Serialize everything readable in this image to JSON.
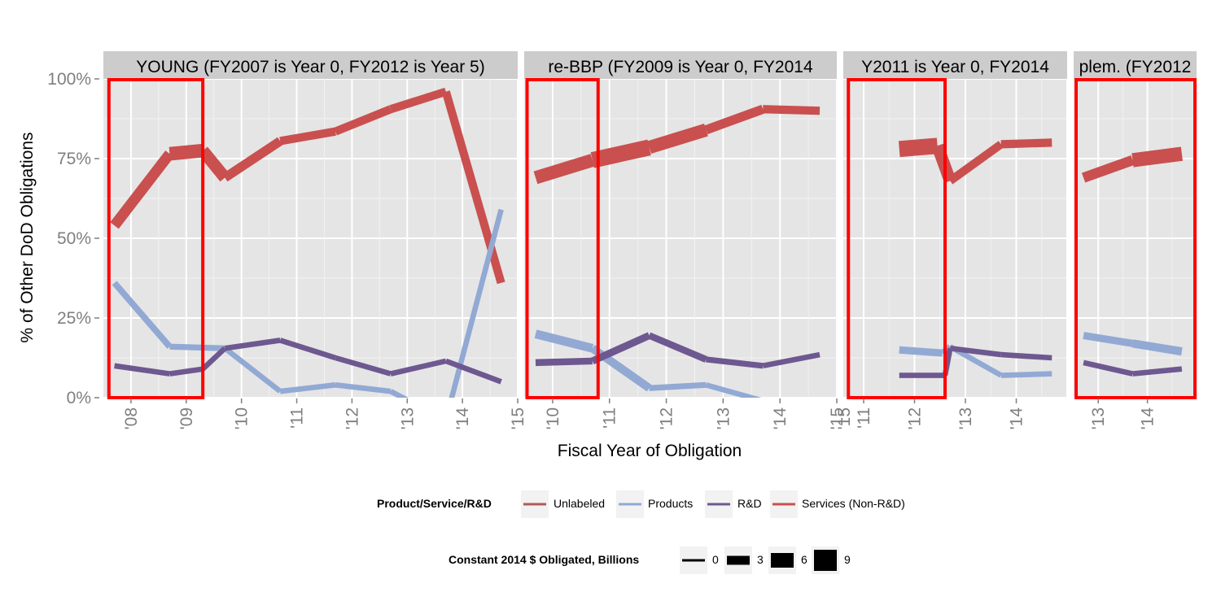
{
  "chart_data": {
    "type": "line",
    "ylabel": "% of  Other DoD  Obligations",
    "xlabel": "Fiscal Year of Obligation",
    "ylim": [
      0,
      1
    ],
    "yticks": [
      "0%",
      "25%",
      "50%",
      "75%",
      "100%"
    ],
    "grid": true,
    "legend_position": "bottom",
    "colors": {
      "Unlabeled": "#B2585A",
      "Products": "#92A9D4",
      "R&D": "#6E5890",
      "Services (Non-R&D)": "#C9504F",
      "panel_bg": "#E5E5E5",
      "strip_bg": "#CCCCCC",
      "highlight": "#FF0000"
    },
    "legend_color": {
      "title": "Product/Service/R&D",
      "items": [
        "Unlabeled",
        "Products",
        "R&D",
        "Services (Non-R&D)"
      ]
    },
    "legend_size": {
      "title": "Constant 2014 $ Obligated, Billions",
      "items": [
        "0",
        "3",
        "6",
        "9"
      ]
    },
    "panels": [
      {
        "strip": "YOUNG (FY2007 is Year 0, FY2012 is Year 5)",
        "xlim": [
          2007.5,
          2015
        ],
        "x_ticks": [
          2008,
          2009,
          2010,
          2011,
          2012,
          2013,
          2014,
          2015
        ],
        "x_tick_labels": [
          "'08",
          "'09",
          "'10",
          "'11",
          "'12",
          "'13",
          "'14",
          "'15"
        ],
        "highlight": [
          2007.6,
          2009.3
        ],
        "series": [
          {
            "name": "Services (Non-R&D)",
            "x": [
              2007.7,
              2008.7,
              2009.3,
              2009.7,
              2010.7,
              2011.7,
              2012.7,
              2013.7,
              2014.7
            ],
            "values": [
              0.54,
              0.765,
              0.775,
              0.69,
              0.805,
              0.835,
              0.905,
              0.96,
              0.36
            ],
            "sizes": [
              3,
              5.5,
              6,
              4,
              3,
              3,
              3,
              3,
              3
            ]
          },
          {
            "name": "Products",
            "x": [
              2007.7,
              2008.7,
              2009.7,
              2010.7,
              2011.7,
              2012.7,
              2013.7,
              2014.7
            ],
            "values": [
              0.36,
              0.16,
              0.155,
              0.02,
              0.04,
              0.02,
              -0.07,
              0.59
            ],
            "sizes": [
              2,
              2,
              1.5,
              1.5,
              1.5,
              1.5,
              1.5,
              1.5
            ]
          },
          {
            "name": "R&D",
            "x": [
              2007.7,
              2008.7,
              2009.3,
              2009.7,
              2010.7,
              2011.7,
              2012.7,
              2013.7,
              2014.7
            ],
            "values": [
              0.1,
              0.075,
              0.09,
              0.155,
              0.18,
              0.125,
              0.075,
              0.115,
              0.05
            ],
            "sizes": [
              1.5,
              1.5,
              1.5,
              1.5,
              1.5,
              1.5,
              1.5,
              1.5,
              1.5
            ]
          }
        ]
      },
      {
        "strip": "re-BBP (FY2009 is Year 0, FY2014",
        "xlim": [
          2009.5,
          2015
        ],
        "x_ticks": [
          2010,
          2011,
          2012,
          2013,
          2014,
          2015
        ],
        "x_tick_labels": [
          "'10",
          "'11",
          "'12",
          "'13",
          "'14",
          "'15"
        ],
        "highlight": [
          2009.55,
          2010.8
        ],
        "series": [
          {
            "name": "Services (Non-R&D)",
            "x": [
              2009.7,
              2010.7,
              2011.7,
              2012.7,
              2013.7,
              2014.7
            ],
            "values": [
              0.69,
              0.745,
              0.785,
              0.84,
              0.905,
              0.9
            ],
            "sizes": [
              4,
              7,
              7,
              4,
              3,
              3
            ]
          },
          {
            "name": "Products",
            "x": [
              2009.7,
              2010.7,
              2011.7,
              2012.7,
              2013.7,
              2014.7
            ],
            "values": [
              0.2,
              0.155,
              0.03,
              0.04,
              -0.01,
              -0.02
            ],
            "sizes": [
              2.5,
              4,
              2,
              1.5,
              1.5,
              1.5
            ]
          },
          {
            "name": "R&D",
            "x": [
              2009.7,
              2010.7,
              2011.7,
              2012.7,
              2013.7,
              2014.7
            ],
            "values": [
              0.11,
              0.115,
              0.195,
              0.12,
              0.1,
              0.135
            ],
            "sizes": [
              2,
              2.5,
              2.5,
              2,
              1.5,
              1.5
            ]
          }
        ]
      },
      {
        "strip": "Y2011 is Year 0, FY2014",
        "xlim": [
          2010.6,
          2015
        ],
        "x_ticks": [
          2011,
          2012,
          2013,
          2014
        ],
        "x_tick_labels": [
          "'11",
          "'12",
          "'13",
          "'14"
        ],
        "extra_tick_label": "'15",
        "highlight": [
          2010.7,
          2012.6
        ],
        "series": [
          {
            "name": "Services (Non-R&D)",
            "x": [
              2011.7,
              2012.45,
              2012.7,
              2013.7,
              2014.7
            ],
            "values": [
              0.78,
              0.79,
              0.68,
              0.795,
              0.8
            ],
            "sizes": [
              7,
              7,
              3,
              3,
              3
            ]
          },
          {
            "name": "Products",
            "x": [
              2011.7,
              2012.55,
              2012.7,
              2013.7,
              2014.7
            ],
            "values": [
              0.15,
              0.14,
              0.16,
              0.07,
              0.075
            ],
            "sizes": [
              2.5,
              2.5,
              1.5,
              1.5,
              1.5
            ]
          },
          {
            "name": "R&D",
            "x": [
              2011.7,
              2012.6,
              2012.7,
              2013.7,
              2014.7
            ],
            "values": [
              0.07,
              0.07,
              0.155,
              0.135,
              0.125
            ],
            "sizes": [
              1.5,
              1.5,
              1.5,
              1.5,
              1.5
            ]
          }
        ]
      },
      {
        "strip": "plem. (FY2012",
        "xlim": [
          2012.5,
          2015
        ],
        "x_ticks": [
          2013,
          2014
        ],
        "x_tick_labels": [
          "'13",
          "'14"
        ],
        "highlight": [
          2012.55,
          2015
        ],
        "series": [
          {
            "name": "Services (Non-R&D)",
            "x": [
              2012.7,
              2013.7,
              2014.7
            ],
            "values": [
              0.69,
              0.745,
              0.765
            ],
            "sizes": [
              3,
              5,
              7
            ]
          },
          {
            "name": "Products",
            "x": [
              2012.7,
              2013.7,
              2014.7
            ],
            "values": [
              0.195,
              0.17,
              0.145
            ],
            "sizes": [
              2,
              3,
              3
            ]
          },
          {
            "name": "R&D",
            "x": [
              2012.7,
              2013.7,
              2014.7
            ],
            "values": [
              0.11,
              0.075,
              0.09
            ],
            "sizes": [
              1.5,
              1.5,
              1.5
            ]
          }
        ]
      }
    ]
  }
}
